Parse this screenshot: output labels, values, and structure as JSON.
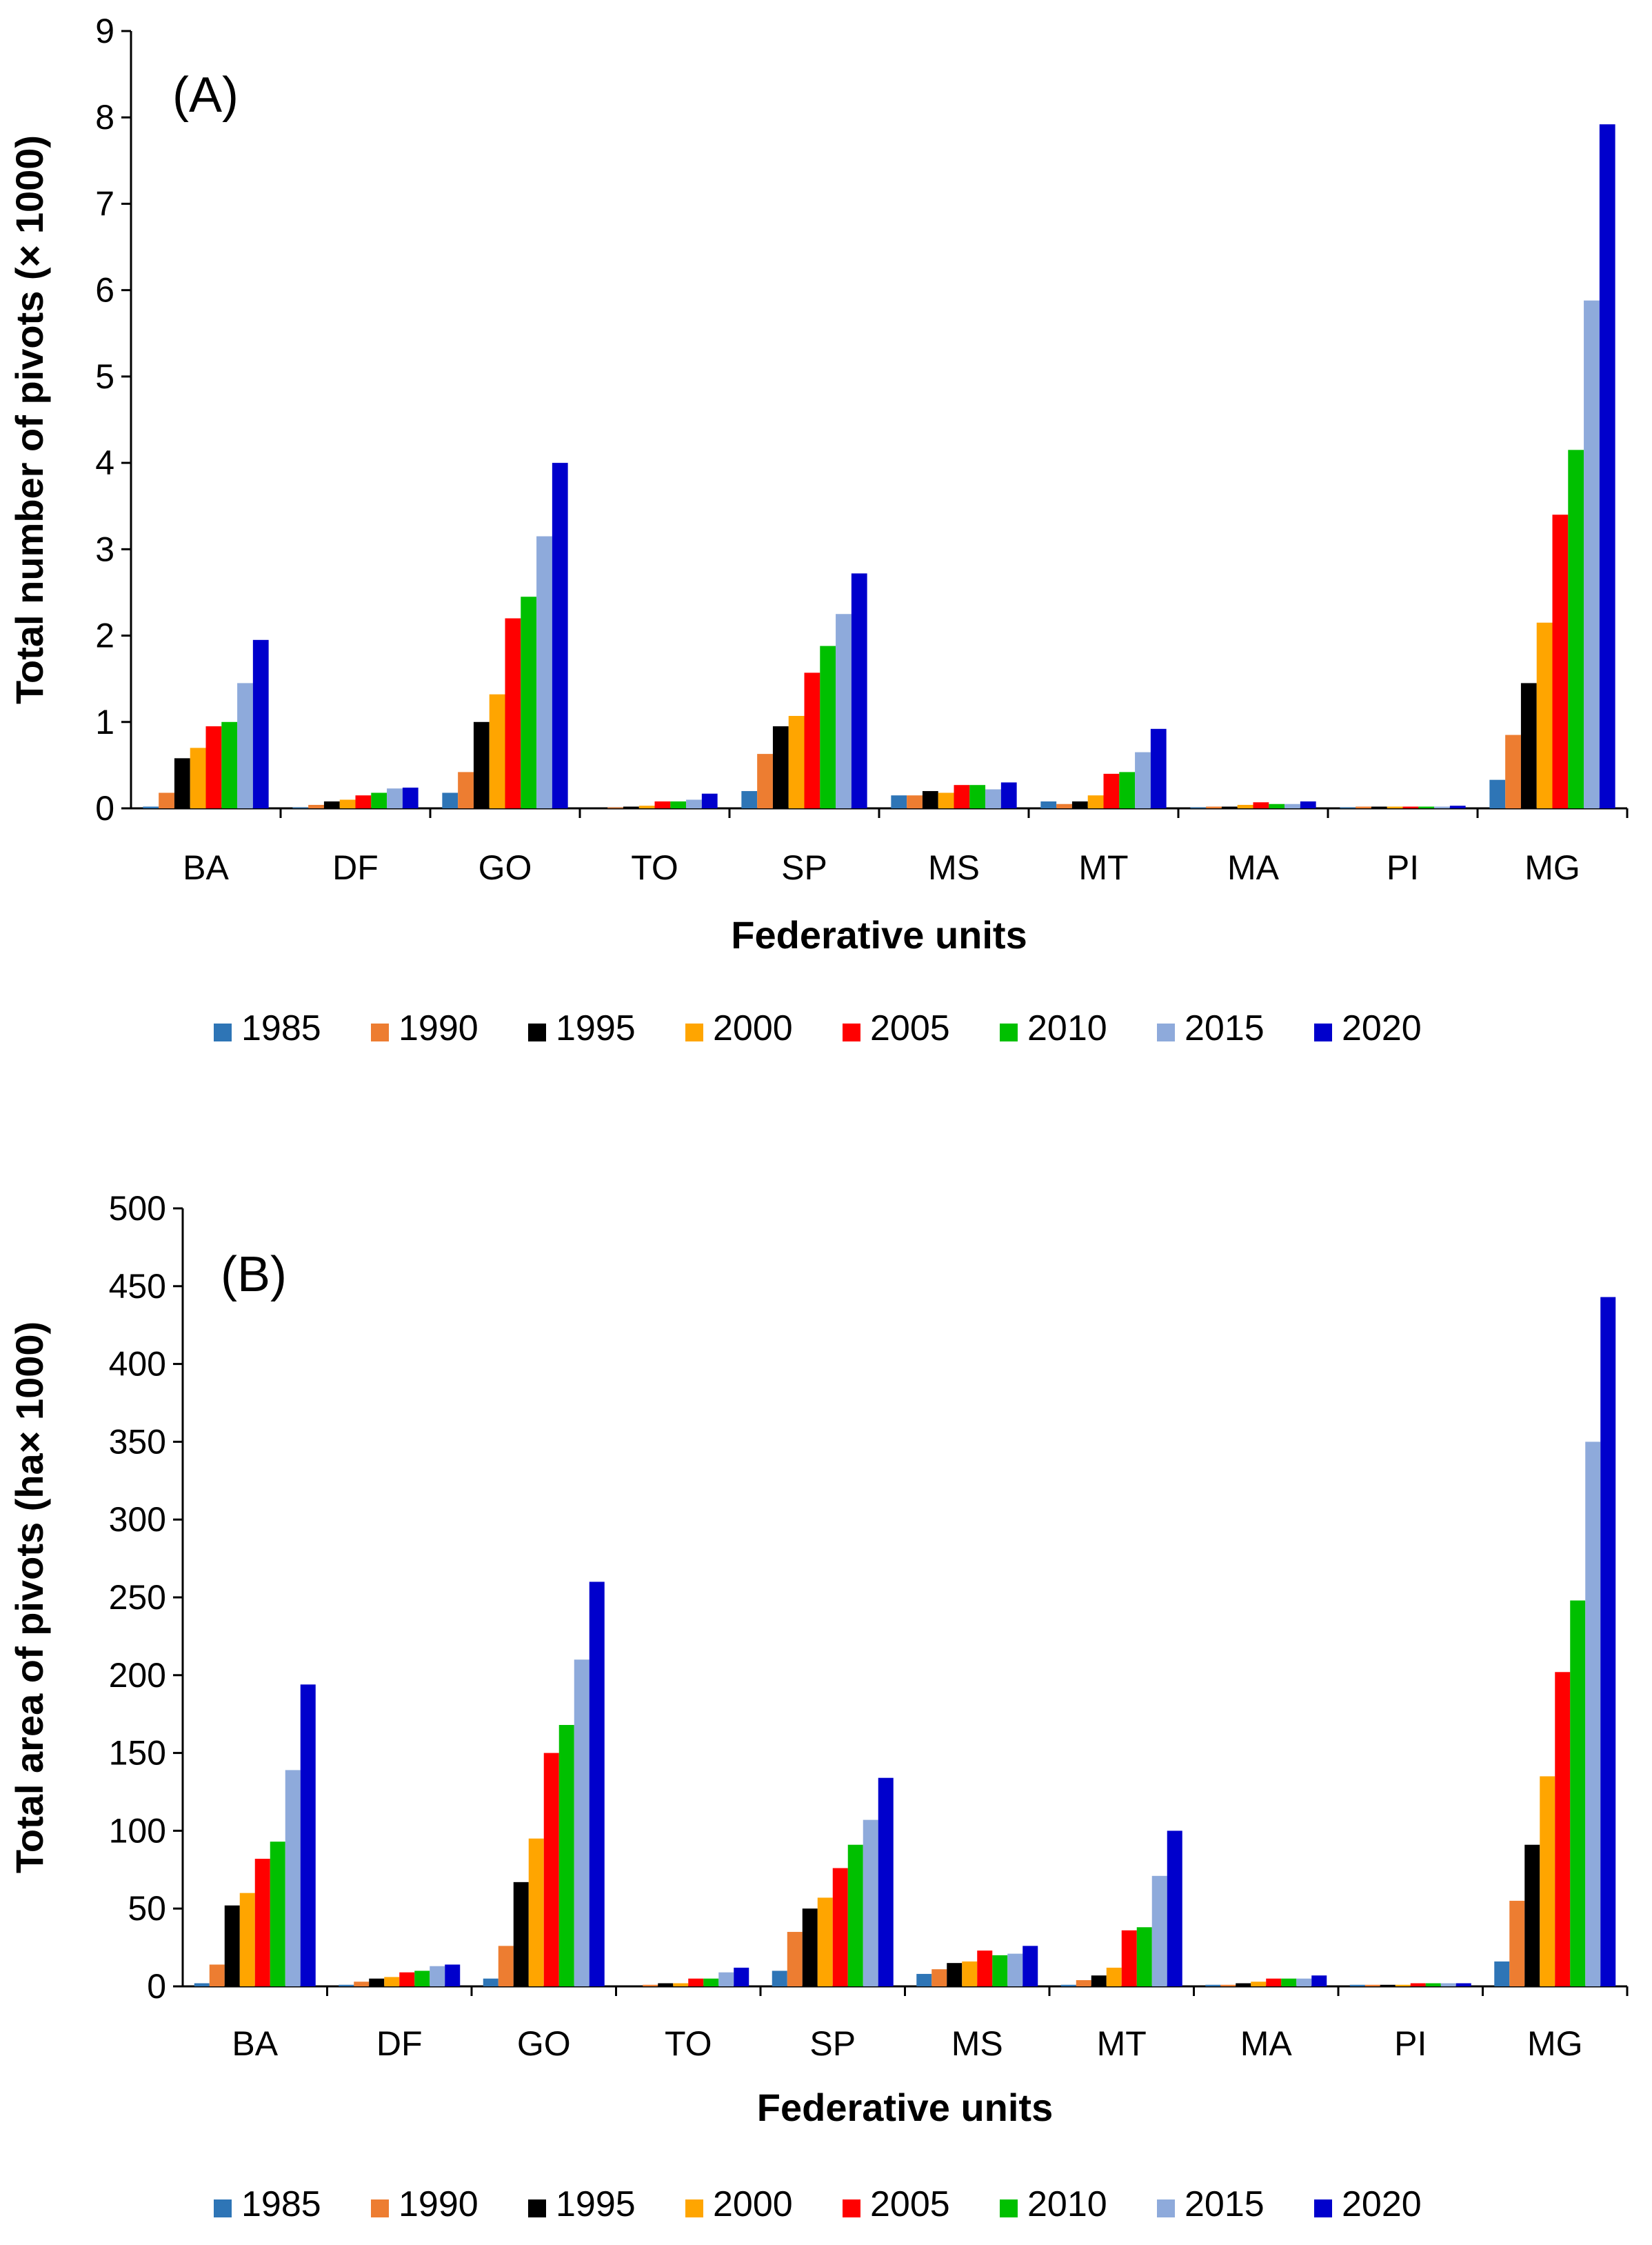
{
  "chart_data": [
    {
      "type": "bar",
      "panel_label": "(A)",
      "title": "",
      "xlabel": "Federative units",
      "ylabel": "Total number of pivots (× 1000)",
      "ylim": [
        0,
        9
      ],
      "yticks": [
        "0",
        "1",
        "2",
        "3",
        "4",
        "5",
        "6",
        "7",
        "8",
        "9"
      ],
      "categories": [
        "BA",
        "DF",
        "GO",
        "TO",
        "SP",
        "MS",
        "MT",
        "MA",
        "PI",
        "MG"
      ],
      "legend_position": "bottom",
      "series": [
        {
          "name": "1985",
          "color": "#2E75B6",
          "values": [
            0.02,
            0.01,
            0.18,
            0.0,
            0.2,
            0.15,
            0.08,
            0.01,
            0.01,
            0.33
          ]
        },
        {
          "name": "1990",
          "color": "#ED7D31",
          "values": [
            0.18,
            0.04,
            0.42,
            0.01,
            0.63,
            0.15,
            0.05,
            0.02,
            0.02,
            0.85
          ]
        },
        {
          "name": "1995",
          "color": "#000000",
          "values": [
            0.58,
            0.08,
            1.0,
            0.02,
            0.95,
            0.2,
            0.08,
            0.02,
            0.02,
            1.45
          ]
        },
        {
          "name": "2000",
          "color": "#FFA500",
          "values": [
            0.7,
            0.1,
            1.32,
            0.03,
            1.07,
            0.18,
            0.15,
            0.04,
            0.02,
            2.15
          ]
        },
        {
          "name": "2005",
          "color": "#FF0000",
          "values": [
            0.95,
            0.15,
            2.2,
            0.08,
            1.57,
            0.27,
            0.4,
            0.07,
            0.02,
            3.4
          ]
        },
        {
          "name": "2010",
          "color": "#00C000",
          "values": [
            1.0,
            0.18,
            2.45,
            0.08,
            1.88,
            0.27,
            0.42,
            0.05,
            0.02,
            4.15
          ]
        },
        {
          "name": "2015",
          "color": "#8EAADB",
          "values": [
            1.45,
            0.23,
            3.15,
            0.1,
            2.25,
            0.22,
            0.65,
            0.05,
            0.02,
            5.88
          ]
        },
        {
          "name": "2020",
          "color": "#0000CC",
          "values": [
            1.95,
            0.24,
            4.0,
            0.17,
            2.72,
            0.3,
            0.92,
            0.08,
            0.03,
            7.92
          ]
        }
      ]
    },
    {
      "type": "bar",
      "panel_label": "(B)",
      "title": "",
      "xlabel": "Federative units",
      "ylabel": "Total area of pivots (ha× 1000)",
      "ylim": [
        0,
        500
      ],
      "yticks": [
        "0",
        "50",
        "100",
        "150",
        "200",
        "250",
        "300",
        "350",
        "400",
        "450",
        "500"
      ],
      "categories": [
        "BA",
        "DF",
        "GO",
        "TO",
        "SP",
        "MS",
        "MT",
        "MA",
        "PI",
        "MG"
      ],
      "legend_position": "bottom",
      "series": [
        {
          "name": "1985",
          "color": "#2E75B6",
          "values": [
            2,
            1,
            5,
            0,
            10,
            8,
            1,
            1,
            1,
            16
          ]
        },
        {
          "name": "1990",
          "color": "#ED7D31",
          "values": [
            14,
            3,
            26,
            1,
            35,
            11,
            4,
            1,
            1,
            55
          ]
        },
        {
          "name": "1995",
          "color": "#000000",
          "values": [
            52,
            5,
            67,
            2,
            50,
            15,
            7,
            2,
            1,
            91
          ]
        },
        {
          "name": "2000",
          "color": "#FFA500",
          "values": [
            60,
            6,
            95,
            2,
            57,
            16,
            12,
            3,
            1,
            135
          ]
        },
        {
          "name": "2005",
          "color": "#FF0000",
          "values": [
            82,
            9,
            150,
            5,
            76,
            23,
            36,
            5,
            2,
            202
          ]
        },
        {
          "name": "2010",
          "color": "#00C000",
          "values": [
            93,
            10,
            168,
            5,
            91,
            20,
            38,
            5,
            2,
            248
          ]
        },
        {
          "name": "2015",
          "color": "#8EAADB",
          "values": [
            139,
            13,
            210,
            9,
            107,
            21,
            71,
            5,
            2,
            350
          ]
        },
        {
          "name": "2020",
          "color": "#0000CC",
          "values": [
            194,
            14,
            260,
            12,
            134,
            26,
            100,
            7,
            2,
            443
          ]
        }
      ]
    }
  ]
}
